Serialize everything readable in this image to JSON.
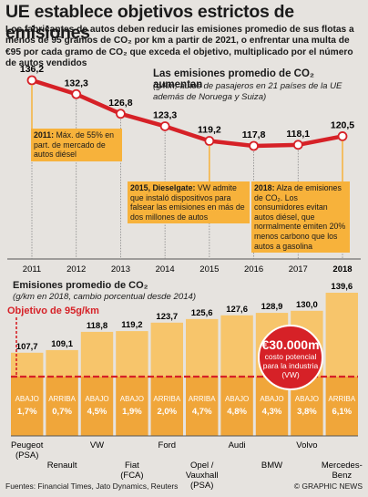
{
  "title": "UE establece objetivos estrictos de emisiones",
  "intro": "Los fabricantes de autos deben reducir las emisiones promedio de sus flotas a menos de 95 gramos de CO₂ por km a partir de 2021, o enfrentar una multa de €95 por cada gramo de CO₂ que exceda el objetivo, multiplicado por el número de autos vendidos",
  "colors": {
    "red": "#d62127",
    "orange": "#f7b23b",
    "bar_orange": "#f0a63a",
    "bar_light": "#f7c56b",
    "background": "#e6e3df"
  },
  "line_chart": {
    "title": "Las emisiones promedio de CO₂ aumentan",
    "subtitle": "(g/km, autos de pasajeros en 21 países de la UE además de Noruega y Suiza)",
    "notes": [
      {
        "bold": "2011:",
        "text": " Máx. de 55% en part. de mercado de autos diésel"
      },
      {
        "bold": "2015, Dieselgate:",
        "text": " VW admite que instaló dispositivos para falsear las emisiones en más de dos millones de autos"
      },
      {
        "bold": "2018:",
        "text": " Alza de emisiones de CO₂. Los consumidores evitan autos diésel, que normalmente emiten 20% menos carbono que los autos a gasolina"
      }
    ]
  },
  "bar_chart": {
    "title": "Emisiones promedio de CO₂",
    "subtitle": "(g/km en 2018, cambio porcentual desde 2014)",
    "goal_label": "Objetivo de 95g/km",
    "badge_value": "€30.000m",
    "badge_text": "costo potencial para la industria (VW)"
  },
  "chart_data": [
    {
      "type": "line",
      "x": [
        2011,
        2012,
        2013,
        2014,
        2015,
        2016,
        2017,
        2018
      ],
      "series": [
        {
          "values": [
            136.2,
            132.3,
            126.8,
            123.3,
            119.2,
            117.8,
            118.1,
            120.5
          ]
        }
      ],
      "value_labels": [
        "136,2",
        "132,3",
        "126,8",
        "123,3",
        "119,2",
        "117,8",
        "118,1",
        "120,5"
      ],
      "tick_labels": [
        "2011",
        "2012",
        "2013",
        "2014",
        "2015",
        "2016",
        "2017",
        "2018"
      ]
    },
    {
      "type": "bar",
      "categories": [
        "Peugeot (PSA)",
        "Renault",
        "VW",
        "Fiat (FCA)",
        "Ford",
        "Opel / Vauxhall (PSA)",
        "Audi",
        "BMW",
        "Volvo",
        "Mercedes-Benz"
      ],
      "category_lines": [
        [
          "Peugeot",
          "(PSA)"
        ],
        [
          "Renault"
        ],
        [
          "VW"
        ],
        [
          "Fiat",
          "(FCA)"
        ],
        [
          "Ford"
        ],
        [
          "Opel /",
          "Vauxhall",
          "(PSA)"
        ],
        [
          "Audi"
        ],
        [
          "BMW"
        ],
        [
          "Volvo"
        ],
        [
          "Mercedes-",
          "Benz"
        ]
      ],
      "values": [
        107.7,
        109.1,
        118.8,
        119.2,
        123.7,
        125.6,
        127.6,
        128.9,
        130.0,
        139.6
      ],
      "value_labels": [
        "107,7",
        "109,1",
        "118,8",
        "119,2",
        "123,7",
        "125,6",
        "127,6",
        "128,9",
        "130,0",
        "139,6"
      ],
      "change_direction": [
        "ABAJO",
        "ARRIBA",
        "ABAJO",
        "ABAJO",
        "ARRIBA",
        "ARRIBA",
        "ABAJO",
        "ABAJO",
        "ABAJO",
        "ARRIBA"
      ],
      "change_pct": [
        "1,7%",
        "0,7%",
        "4,5%",
        "1,9%",
        "2,0%",
        "4,7%",
        "4,8%",
        "4,3%",
        "3,8%",
        "6,1%"
      ],
      "target": 95
    }
  ],
  "footer": {
    "sources": "Fuentes: Financial Times, Jato Dynamics, Reuters",
    "credit": "© GRAPHIC NEWS"
  }
}
